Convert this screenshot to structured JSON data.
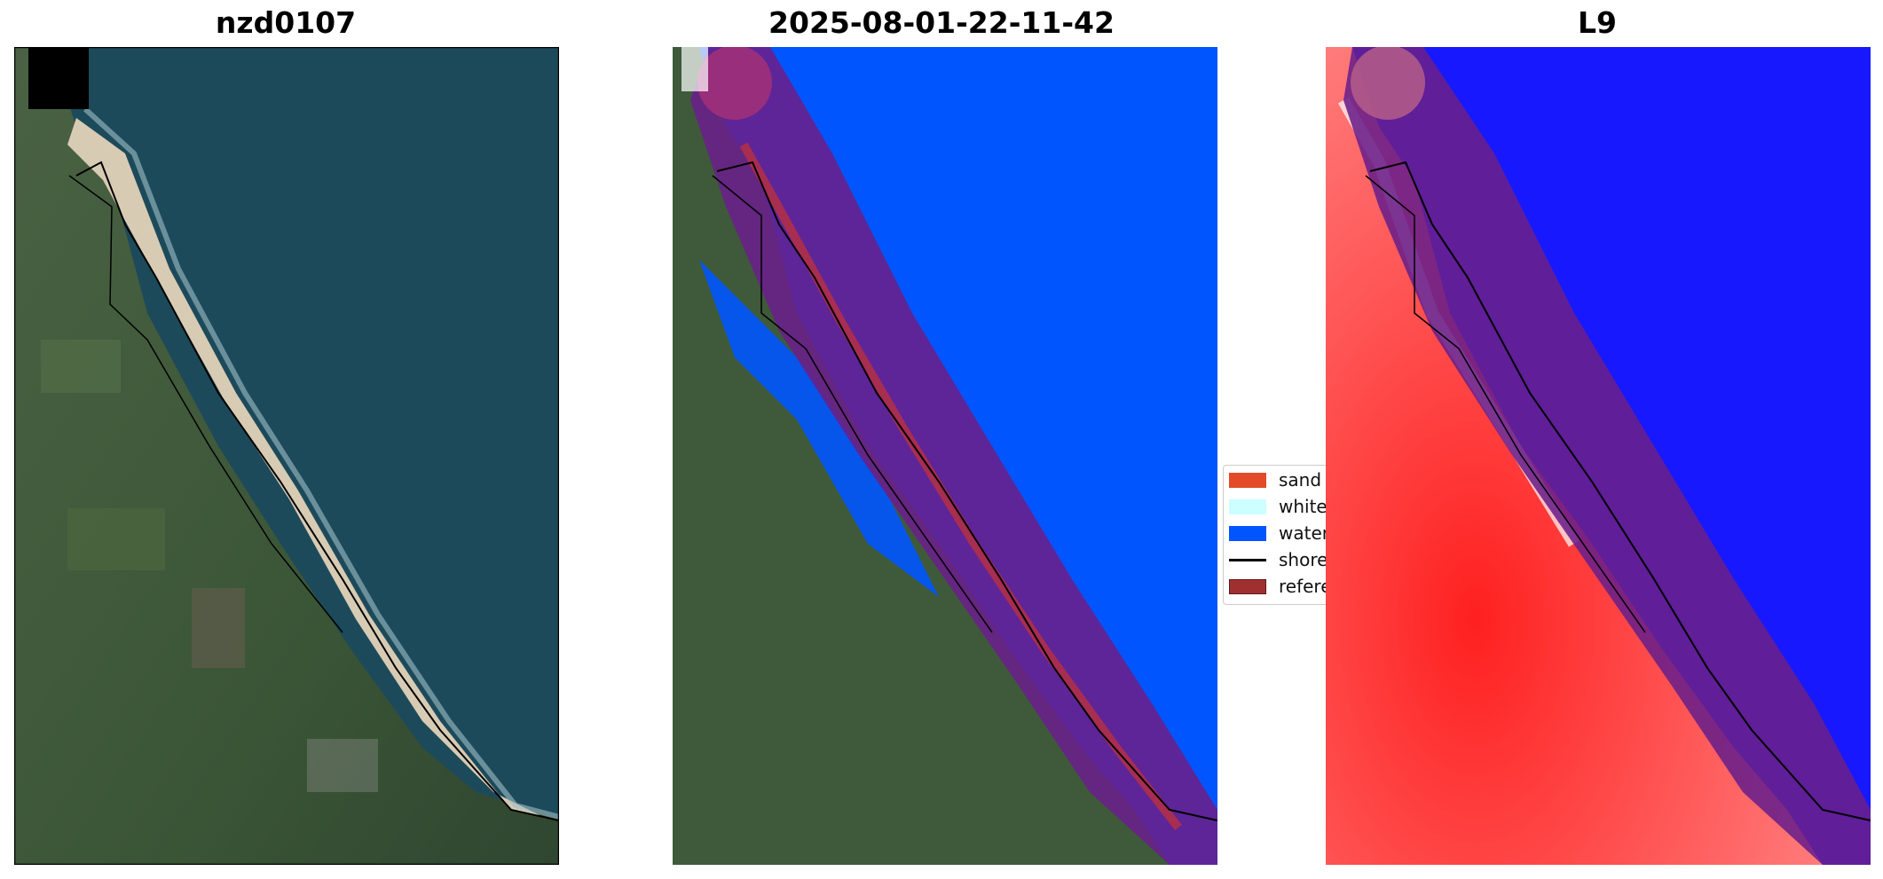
{
  "panels": [
    {
      "title": "nzd0107"
    },
    {
      "title": "2025-08-01-22-11-42"
    },
    {
      "title": "L9"
    }
  ],
  "legend": {
    "items": [
      {
        "label": "sand",
        "color": "#e34a27",
        "kind": "patch"
      },
      {
        "label": "white",
        "color": "#ccffff",
        "kind": "patch"
      },
      {
        "label": "water",
        "color": "#0055ff",
        "kind": "patch"
      },
      {
        "label": "shoreline",
        "color": "#000000",
        "kind": "line"
      },
      {
        "label": "reference",
        "color": "#a03030",
        "kind": "patch"
      }
    ]
  },
  "colors": {
    "ocean": "#1d4a5a",
    "land": "#3e5a3a",
    "beach": "#d8cbb4",
    "water_class": "#0055ff",
    "sand_class": "#e34a27",
    "buffer": "#6a1f8a",
    "index_land": "#ff4a4a",
    "index_water": "#1818ff"
  }
}
